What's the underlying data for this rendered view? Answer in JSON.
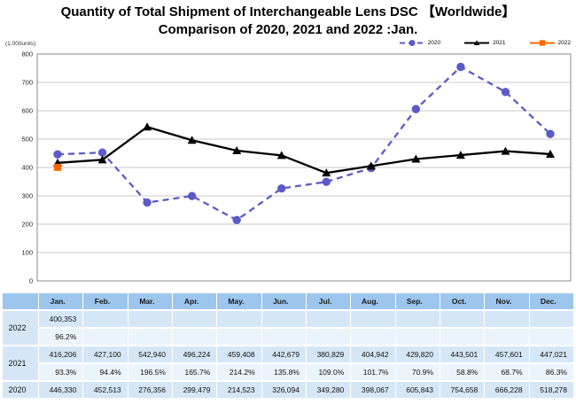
{
  "title": {
    "line1": "Quantity of Total Shipment of Interchangeable Lens DSC 【Worldwide】",
    "line2": "Comparison of 2020, 2021 and 2022 :Jan."
  },
  "chart": {
    "units_label": "(1,000units)"
  },
  "chart_data": {
    "type": "line",
    "title": "Quantity of Total Shipment of Interchangeable Lens DSC [Worldwide] Comparison of 2020, 2021 and 2022 :Jan.",
    "categories": [
      "Jan.",
      "Feb.",
      "Mar.",
      "Apr.",
      "May.",
      "Jun.",
      "Jul.",
      "Aug.",
      "Sep.",
      "Oct.",
      "Nov.",
      "Dec."
    ],
    "xlabel": "",
    "ylabel": "(1,000units)",
    "ylim": [
      0,
      800
    ],
    "ytick_interval": 100,
    "yticks": [
      0,
      100,
      200,
      300,
      400,
      500,
      600,
      700,
      800
    ],
    "grid": true,
    "legend_position": "top-right",
    "values_unit": "thousand units",
    "series": [
      {
        "name": "2020",
        "color": "#5b5bc8",
        "line_style": "dashed",
        "marker": "circle",
        "values": [
          446.33,
          452.513,
          276.356,
          299.479,
          214.523,
          326.094,
          349.28,
          398.067,
          605.843,
          754.658,
          666.228,
          518.278
        ]
      },
      {
        "name": "2021",
        "color": "#000000",
        "line_style": "solid",
        "marker": "triangle",
        "values": [
          416.206,
          427.1,
          542.94,
          496.224,
          459.408,
          442.679,
          380.829,
          404.942,
          429.82,
          443.501,
          457.601,
          447.021
        ]
      },
      {
        "name": "2022",
        "color": "#ff6600",
        "line_style": "solid",
        "marker": "square",
        "values": [
          400.353
        ]
      }
    ]
  },
  "table": {
    "columns": [
      "",
      "Jan.",
      "Feb.",
      "Mar.",
      "Apr.",
      "May.",
      "Jun.",
      "Jul.",
      "Aug.",
      "Sep.",
      "Oct.",
      "Nov.",
      "Dec."
    ],
    "rows": [
      {
        "year": "2022",
        "values": [
          "400,353",
          "",
          "",
          "",
          "",
          "",
          "",
          "",
          "",
          "",
          "",
          ""
        ],
        "percents": [
          "96.2%",
          "",
          "",
          "",
          "",
          "",
          "",
          "",
          "",
          "",
          "",
          ""
        ]
      },
      {
        "year": "2021",
        "values": [
          "416,206",
          "427,100",
          "542,940",
          "496,224",
          "459,408",
          "442,679",
          "380,829",
          "404,942",
          "429,820",
          "443,501",
          "457,601",
          "447,021"
        ],
        "percents": [
          "93.3%",
          "94.4%",
          "196.5%",
          "165.7%",
          "214.2%",
          "135.8%",
          "109.0%",
          "101.7%",
          "70.9%",
          "58.8%",
          "68.7%",
          "86.3%"
        ]
      },
      {
        "year": "2020",
        "values": [
          "446,330",
          "452,513",
          "276,356",
          "299,479",
          "214,523",
          "326,094",
          "349,280",
          "398,067",
          "605,843",
          "754,658",
          "666,228",
          "518,278"
        ],
        "percents": null
      }
    ]
  },
  "colors": {
    "grid": "#c9c9c9",
    "plot_border": "#8a8a8a",
    "header_bg": "#9cc6ee",
    "value_row_bg": "#d5e7f7",
    "percent_row_bg": "#ebf3fb"
  }
}
